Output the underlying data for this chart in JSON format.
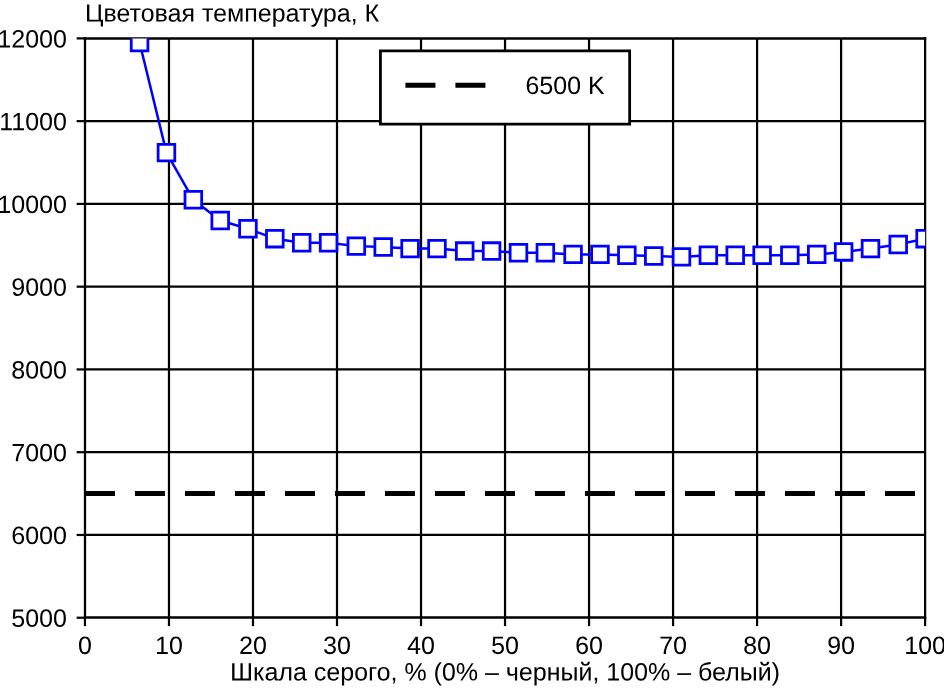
{
  "chart_data": {
    "type": "line",
    "title": "Цветовая температура, К",
    "xlabel": "Шкала серого, % (0% – черный, 100% – белый)",
    "x": [
      6.5,
      9.7,
      12.9,
      16.1,
      19.4,
      22.6,
      25.8,
      29.0,
      32.3,
      35.5,
      38.7,
      41.9,
      45.2,
      48.4,
      51.6,
      54.8,
      58.1,
      61.3,
      64.5,
      67.7,
      71.0,
      74.2,
      77.4,
      80.6,
      83.9,
      87.1,
      90.3,
      93.5,
      96.8,
      100
    ],
    "series": [
      {
        "color": "#0000ff",
        "marker": "square",
        "values": [
          11950,
          10620,
          10050,
          9800,
          9700,
          9580,
          9530,
          9530,
          9490,
          9480,
          9460,
          9460,
          9430,
          9430,
          9410,
          9410,
          9390,
          9390,
          9380,
          9370,
          9360,
          9380,
          9380,
          9380,
          9380,
          9390,
          9420,
          9460,
          9510,
          9580
        ]
      }
    ],
    "ref_lines": [
      {
        "axis": "y",
        "value": 6500,
        "label": "6500 K",
        "color": "#000000",
        "line_style": "dashed"
      }
    ],
    "xlim": [
      0,
      100
    ],
    "xticks": [
      0,
      10,
      20,
      30,
      40,
      50,
      60,
      70,
      80,
      90,
      100
    ],
    "ylim": [
      5000,
      12000
    ],
    "yticks": [
      5000,
      6000,
      7000,
      8000,
      9000,
      10000,
      11000,
      12000
    ],
    "grid": true,
    "legend": "top"
  }
}
